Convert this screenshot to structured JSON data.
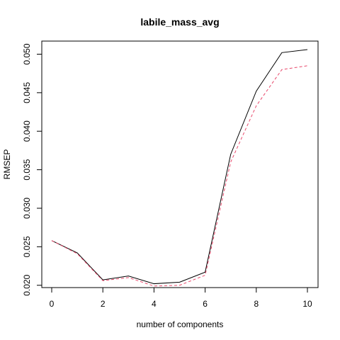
{
  "chart_data": {
    "type": "line",
    "title": "labile_mass_avg",
    "xlabel": "number of components",
    "ylabel": "RMSEP",
    "x": [
      0,
      1,
      2,
      3,
      4,
      5,
      6,
      7,
      8,
      9,
      10
    ],
    "xlim": [
      0,
      10
    ],
    "ylim": [
      0.0197,
      0.0517
    ],
    "x_ticks": [
      0,
      2,
      4,
      6,
      8,
      10
    ],
    "x_tick_labels": [
      "0",
      "2",
      "4",
      "6",
      "8",
      "10"
    ],
    "y_ticks": [
      0.02,
      0.025,
      0.03,
      0.035,
      0.04,
      0.045,
      0.05
    ],
    "y_tick_labels": [
      "0.020",
      "0.025",
      "0.030",
      "0.035",
      "0.040",
      "0.045",
      "0.050"
    ],
    "grid": false,
    "legend": "none",
    "series": [
      {
        "values": [
          0.0258,
          0.0242,
          0.0207,
          0.0212,
          0.0202,
          0.0204,
          0.0217,
          0.037,
          0.0452,
          0.0502,
          0.0506
        ],
        "color": "#000000",
        "line_style": "solid"
      },
      {
        "values": [
          0.0258,
          0.0241,
          0.0206,
          0.021,
          0.0199,
          0.02,
          0.0213,
          0.036,
          0.0433,
          0.048,
          0.0485
        ],
        "color": "#e8476a",
        "line_style": "dashed"
      }
    ]
  }
}
